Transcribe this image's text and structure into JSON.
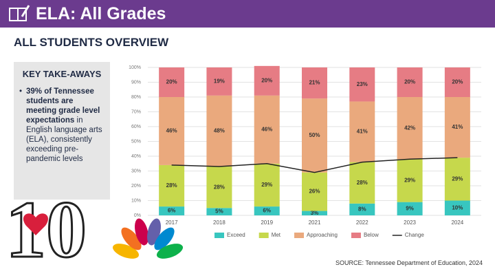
{
  "header": {
    "title": "ELA: All Grades",
    "subtitle": "ALL STUDENTS OVERVIEW"
  },
  "takeaways": {
    "heading": "KEY TAKE-AWAYS",
    "items": [
      {
        "bold": "39% of Tennessee students are meeting grade level expectations",
        "text": "in English language arts (ELA), consistently exceeding pre-pandemic levels"
      }
    ]
  },
  "watermark": "10",
  "source": "SOURCE: Tennessee Department of Education, 2024",
  "chart_data": {
    "type": "stacked_bar",
    "categories": [
      "2017",
      "2018",
      "2019",
      "2021",
      "2022",
      "2023",
      "2024"
    ],
    "ylim": [
      0,
      100
    ],
    "yticks": [
      {
        "value": 0,
        "label": "0%"
      },
      {
        "value": 10,
        "label": "10%"
      },
      {
        "value": 20,
        "label": "20%"
      },
      {
        "value": 30,
        "label": "30%"
      },
      {
        "value": 40,
        "label": "40%"
      },
      {
        "value": 50,
        "label": "50%"
      },
      {
        "value": 60,
        "label": "60%"
      },
      {
        "value": 70,
        "label": "70%"
      },
      {
        "value": 80,
        "label": "80%"
      },
      {
        "value": 90,
        "label": "90%"
      },
      {
        "value": 100,
        "label": "100%"
      }
    ],
    "grid": true,
    "legend": "bottom",
    "series": [
      {
        "name": "Exceed",
        "color": "#38c6bf",
        "values": [
          6,
          5,
          6,
          3,
          8,
          9,
          10
        ],
        "value_labels": [
          "6%",
          "5%",
          "6%",
          "3%",
          "8%",
          "9%",
          "10%"
        ]
      },
      {
        "name": "Met",
        "color": "#c6d84c",
        "values": [
          28,
          28,
          29,
          26,
          28,
          29,
          29
        ],
        "value_labels": [
          "28%",
          "28%",
          "29%",
          "26%",
          "28%",
          "29%",
          "29%"
        ]
      },
      {
        "name": "Approaching",
        "color": "#eaa97d",
        "values": [
          46,
          48,
          46,
          50,
          41,
          42,
          41
        ],
        "value_labels": [
          "46%",
          "48%",
          "46%",
          "50%",
          "41%",
          "42%",
          "41%"
        ]
      },
      {
        "name": "Below",
        "color": "#e67c84",
        "values": [
          20,
          19,
          20,
          21,
          23,
          20,
          20
        ],
        "value_labels": [
          "20%",
          "19%",
          "20%",
          "21%",
          "23%",
          "20%",
          "20%"
        ]
      },
      {
        "name": "Change",
        "color": "#222222",
        "type": "line",
        "values": [
          34,
          33,
          35,
          29,
          36,
          38,
          39
        ]
      }
    ]
  }
}
